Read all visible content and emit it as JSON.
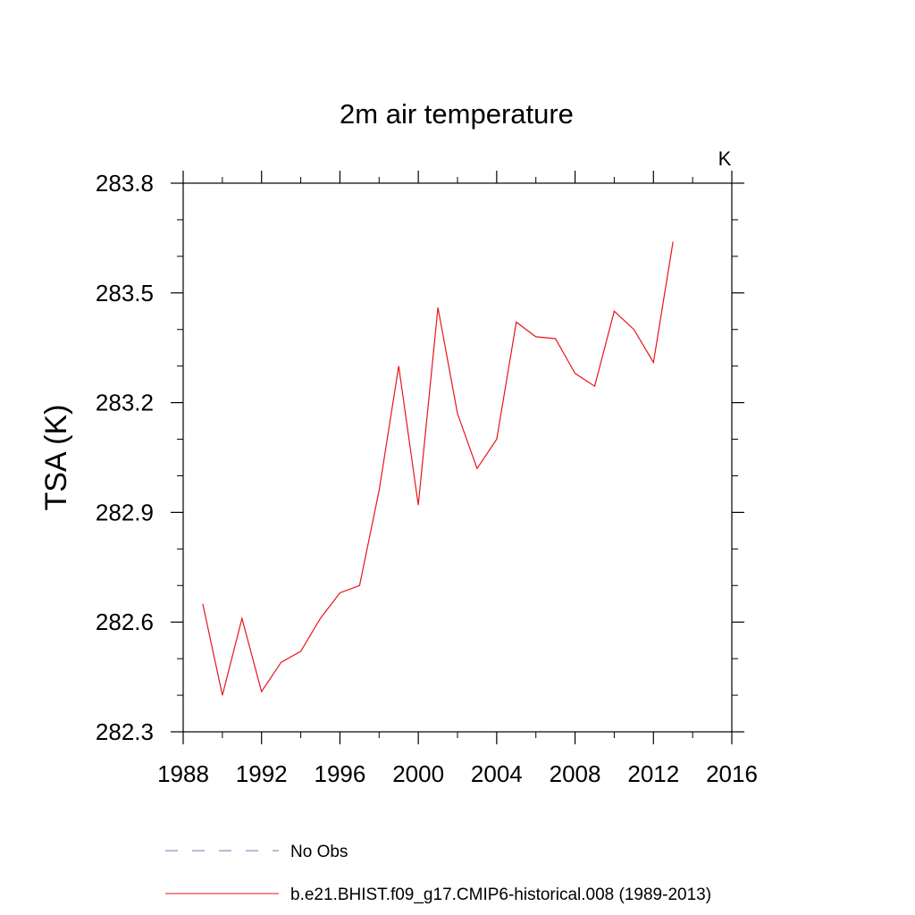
{
  "chart_data": {
    "type": "line",
    "title": "2m air temperature",
    "units_label": "K",
    "xlabel": "",
    "ylabel": "TSA  (K)",
    "xlim": [
      1988,
      2016
    ],
    "ylim": [
      282.3,
      283.8
    ],
    "xticks": [
      1988,
      1992,
      1996,
      2000,
      2004,
      2008,
      2012,
      2016
    ],
    "xtick_labels": [
      "1988",
      "1992",
      "1996",
      "2000",
      "2004",
      "2008",
      "2012",
      "2016"
    ],
    "yticks": [
      282.3,
      282.6,
      282.9,
      283.2,
      283.5,
      283.8
    ],
    "ytick_labels": [
      "282.3",
      "282.6",
      "282.9",
      "283.2",
      "283.5",
      "283.8"
    ],
    "grid": false,
    "legend_position": "bottom",
    "series": [
      {
        "name": "No Obs",
        "color": "#7b6fb0",
        "dash": true,
        "x": [],
        "y": []
      },
      {
        "name": "b.e21.BHIST.f09_g17.CMIP6-historical.008 (1989-2013)",
        "color": "#e8141c",
        "dash": false,
        "x": [
          1989,
          1990,
          1991,
          1992,
          1993,
          1994,
          1995,
          1996,
          1997,
          1998,
          1999,
          2000,
          2001,
          2002,
          2003,
          2004,
          2005,
          2006,
          2007,
          2008,
          2009,
          2010,
          2011,
          2012,
          2013
        ],
        "y": [
          282.65,
          282.4,
          282.61,
          282.41,
          282.49,
          282.52,
          282.61,
          282.68,
          282.7,
          282.96,
          283.3,
          282.92,
          283.46,
          283.17,
          283.02,
          283.1,
          283.42,
          283.38,
          283.375,
          283.28,
          283.245,
          283.45,
          283.4,
          283.31,
          283.64
        ]
      }
    ]
  }
}
